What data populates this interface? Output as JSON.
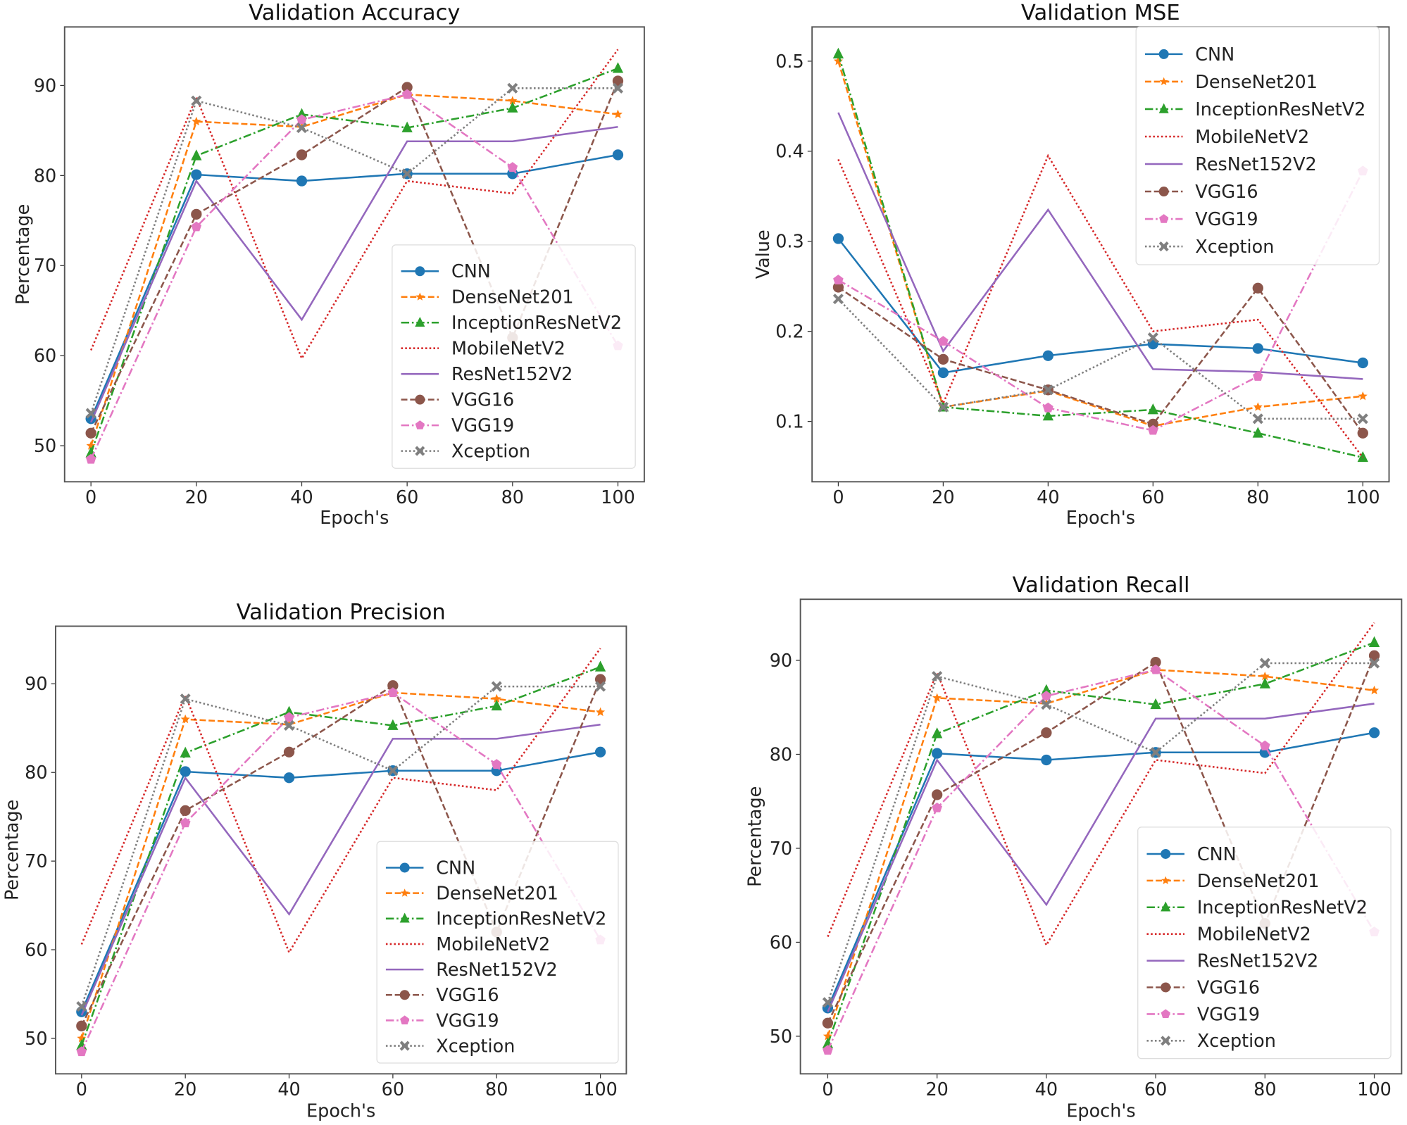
{
  "series_styles": [
    {
      "name": "CNN",
      "color": "#1f77b4",
      "dash": "solid",
      "marker": "circle"
    },
    {
      "name": "DenseNet201",
      "color": "#ff7f0e",
      "dash": "dashed",
      "marker": "star"
    },
    {
      "name": "InceptionResNetV2",
      "color": "#2ca02c",
      "dash": "dashdot",
      "marker": "triangle"
    },
    {
      "name": "MobileNetV2",
      "color": "#d62728",
      "dash": "dotted",
      "marker": "none"
    },
    {
      "name": "ResNet152V2",
      "color": "#9467bd",
      "dash": "solid",
      "marker": "none"
    },
    {
      "name": "VGG16",
      "color": "#8c564b",
      "dash": "dashed",
      "marker": "circle"
    },
    {
      "name": "VGG19",
      "color": "#e377c2",
      "dash": "dashdot",
      "marker": "pentagon"
    },
    {
      "name": "Xception",
      "color": "#7f7f7f",
      "dash": "dotted",
      "marker": "x"
    }
  ],
  "chart_data": [
    {
      "type": "line",
      "title": "Validation Accuracy",
      "xlabel": "Epoch's",
      "ylabel": "Percentage",
      "x": [
        0,
        20,
        40,
        60,
        80,
        100
      ],
      "xticks": [
        0,
        20,
        40,
        60,
        80,
        100
      ],
      "xlim": [
        -5,
        105
      ],
      "yticks": [
        50,
        60,
        70,
        80,
        90
      ],
      "ylim": [
        46,
        96.5
      ],
      "legend": "center-right",
      "grid": false,
      "series": [
        {
          "name": "CNN",
          "values": [
            53,
            80.1,
            79.4,
            80.2,
            80.2,
            82.3
          ]
        },
        {
          "name": "DenseNet201",
          "values": [
            50,
            86,
            85.4,
            89,
            88.3,
            86.8
          ]
        },
        {
          "name": "InceptionResNetV2",
          "values": [
            49.2,
            82.2,
            86.8,
            85.3,
            87.5,
            91.9
          ]
        },
        {
          "name": "MobileNetV2",
          "values": [
            60.6,
            88.7,
            59.7,
            79.4,
            78,
            94
          ]
        },
        {
          "name": "ResNet152V2",
          "values": [
            52.6,
            79.4,
            64,
            83.8,
            83.8,
            85.4
          ]
        },
        {
          "name": "VGG16",
          "values": [
            51.4,
            75.7,
            82.3,
            89.8,
            62,
            90.5
          ]
        },
        {
          "name": "VGG19",
          "values": [
            48.5,
            74.3,
            86.2,
            89,
            80.9,
            61.1
          ]
        },
        {
          "name": "Xception",
          "values": [
            53.6,
            88.3,
            85.3,
            80.2,
            89.7,
            89.7
          ]
        }
      ]
    },
    {
      "type": "line",
      "title": "Validation MSE",
      "xlabel": "Epoch's",
      "ylabel": "Value",
      "x": [
        0,
        20,
        40,
        60,
        80,
        100
      ],
      "xticks": [
        0,
        20,
        40,
        60,
        80,
        100
      ],
      "xlim": [
        -5,
        105
      ],
      "yticks": [
        0.1,
        0.2,
        0.3,
        0.4,
        0.5
      ],
      "ylim": [
        0.033,
        0.538
      ],
      "legend": "upper-right",
      "grid": false,
      "series": [
        {
          "name": "CNN",
          "values": [
            0.303,
            0.154,
            0.173,
            0.186,
            0.181,
            0.165
          ]
        },
        {
          "name": "DenseNet201",
          "values": [
            0.5,
            0.116,
            0.134,
            0.095,
            0.116,
            0.128
          ]
        },
        {
          "name": "InceptionResNetV2",
          "values": [
            0.508,
            0.116,
            0.106,
            0.113,
            0.087,
            0.06
          ]
        },
        {
          "name": "MobileNetV2",
          "values": [
            0.391,
            0.12,
            0.395,
            0.2,
            0.213,
            0.06
          ]
        },
        {
          "name": "ResNet152V2",
          "values": [
            0.443,
            0.178,
            0.335,
            0.158,
            0.155,
            0.147
          ]
        },
        {
          "name": "VGG16",
          "values": [
            0.249,
            0.169,
            0.135,
            0.097,
            0.248,
            0.087
          ]
        },
        {
          "name": "VGG19",
          "values": [
            0.257,
            0.189,
            0.115,
            0.09,
            0.15,
            0.378
          ]
        },
        {
          "name": "Xception",
          "values": [
            0.236,
            0.116,
            0.135,
            0.193,
            0.103,
            0.103
          ]
        }
      ]
    },
    {
      "type": "line",
      "title": "Validation Precision",
      "xlabel": "Epoch's",
      "ylabel": "Percentage",
      "x": [
        0,
        20,
        40,
        60,
        80,
        100
      ],
      "xticks": [
        0,
        20,
        40,
        60,
        80,
        100
      ],
      "xlim": [
        -5,
        105
      ],
      "yticks": [
        50,
        60,
        70,
        80,
        90
      ],
      "ylim": [
        46,
        96.5
      ],
      "legend": "lower-right",
      "grid": false,
      "series": [
        {
          "name": "CNN",
          "values": [
            53,
            80.1,
            79.4,
            80.2,
            80.2,
            82.3
          ]
        },
        {
          "name": "DenseNet201",
          "values": [
            50,
            86,
            85.4,
            89,
            88.3,
            86.8
          ]
        },
        {
          "name": "InceptionResNetV2",
          "values": [
            49.2,
            82.2,
            86.8,
            85.3,
            87.5,
            91.9
          ]
        },
        {
          "name": "MobileNetV2",
          "values": [
            60.6,
            88.7,
            59.7,
            79.4,
            78,
            94
          ]
        },
        {
          "name": "ResNet152V2",
          "values": [
            52.6,
            79.4,
            64,
            83.8,
            83.8,
            85.4
          ]
        },
        {
          "name": "VGG16",
          "values": [
            51.4,
            75.7,
            82.3,
            89.8,
            62,
            90.5
          ]
        },
        {
          "name": "VGG19",
          "values": [
            48.5,
            74.3,
            86.2,
            89,
            80.9,
            61.1
          ]
        },
        {
          "name": "Xception",
          "values": [
            53.6,
            88.3,
            85.3,
            80.2,
            89.7,
            89.7
          ]
        }
      ]
    },
    {
      "type": "line",
      "title": "Validation Recall",
      "xlabel": "Epoch's",
      "ylabel": "Percentage",
      "x": [
        0,
        20,
        40,
        60,
        80,
        100
      ],
      "xticks": [
        0,
        20,
        40,
        60,
        80,
        100
      ],
      "xlim": [
        -5,
        105
      ],
      "yticks": [
        50,
        60,
        70,
        80,
        90
      ],
      "ylim": [
        46,
        96.5
      ],
      "legend": "lower-right",
      "grid": false,
      "series": [
        {
          "name": "CNN",
          "values": [
            53,
            80.1,
            79.4,
            80.2,
            80.2,
            82.3
          ]
        },
        {
          "name": "DenseNet201",
          "values": [
            50,
            86,
            85.4,
            89,
            88.3,
            86.8
          ]
        },
        {
          "name": "InceptionResNetV2",
          "values": [
            49.2,
            82.2,
            86.8,
            85.3,
            87.5,
            91.9
          ]
        },
        {
          "name": "MobileNetV2",
          "values": [
            60.6,
            88.7,
            59.7,
            79.4,
            78,
            94
          ]
        },
        {
          "name": "ResNet152V2",
          "values": [
            52.6,
            79.4,
            64,
            83.8,
            83.8,
            85.4
          ]
        },
        {
          "name": "VGG16",
          "values": [
            51.4,
            75.7,
            82.3,
            89.8,
            62,
            90.5
          ]
        },
        {
          "name": "VGG19",
          "values": [
            48.5,
            74.3,
            86.2,
            89,
            80.9,
            61.1
          ]
        },
        {
          "name": "Xception",
          "values": [
            53.6,
            88.3,
            85.3,
            80.2,
            89.7,
            89.7
          ]
        }
      ]
    }
  ]
}
